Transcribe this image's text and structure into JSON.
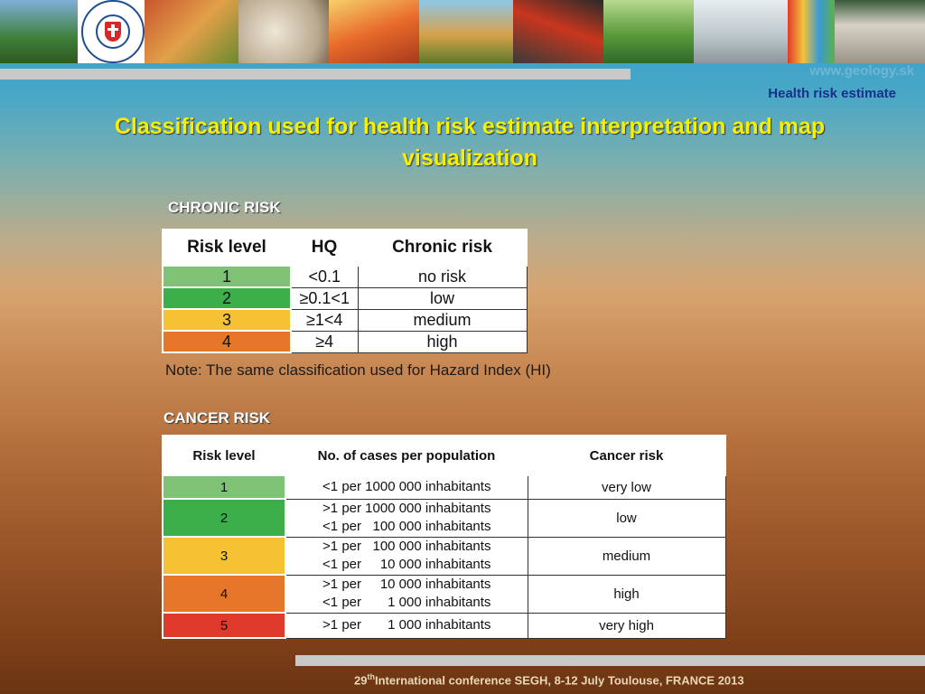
{
  "header": {
    "site": "www.geology.sk",
    "subtitle": "Health risk estimate",
    "title": "Classification used for health risk estimate interpretation and map visualization"
  },
  "chronic": {
    "section_label": "CHRONIC RISK",
    "headers": [
      "Risk level",
      "HQ",
      "Chronic risk"
    ],
    "rows": [
      {
        "level": "1",
        "hq": "<0.1",
        "risk": "no risk",
        "color": "#7ec275"
      },
      {
        "level": "2",
        "hq": "≥0.1<1",
        "risk": "low",
        "color": "#3daf4a"
      },
      {
        "level": "3",
        "hq": "≥1<4",
        "risk": "medium",
        "color": "#f4c232"
      },
      {
        "level": "4",
        "hq": "≥4",
        "risk": "high",
        "color": "#e5762a"
      }
    ],
    "note": "Note: The same classification used for Hazard Index (HI)"
  },
  "cancer": {
    "section_label": "CANCER RISK",
    "headers": [
      "Risk level",
      "No. of cases per population",
      "Cancer risk"
    ],
    "rows": [
      {
        "level": "1",
        "cases": [
          "<1 per 1000 000 inhabitants"
        ],
        "risk": "very low",
        "color": "#7ec275"
      },
      {
        "level": "2",
        "cases": [
          ">1 per 1000 000 inhabitants",
          "<1 per   100 000 inhabitants"
        ],
        "risk": "low",
        "color": "#3daf4a"
      },
      {
        "level": "3",
        "cases": [
          ">1 per   100 000 inhabitants",
          "<1 per     10 000 inhabitants"
        ],
        "risk": "medium",
        "color": "#f4c232"
      },
      {
        "level": "4",
        "cases": [
          ">1 per     10 000 inhabitants",
          "<1 per       1 000 inhabitants"
        ],
        "risk": "high",
        "color": "#e5762a"
      },
      {
        "level": "5",
        "cases": [
          ">1 per       1 000 inhabitants"
        ],
        "risk": "very high",
        "color": "#e03a2d"
      }
    ]
  },
  "footer": {
    "ordinal": "29",
    "ordinal_suffix": "th",
    "text": "International conference SEGH, 8-12 July Toulouse, FRANCE 2013"
  }
}
